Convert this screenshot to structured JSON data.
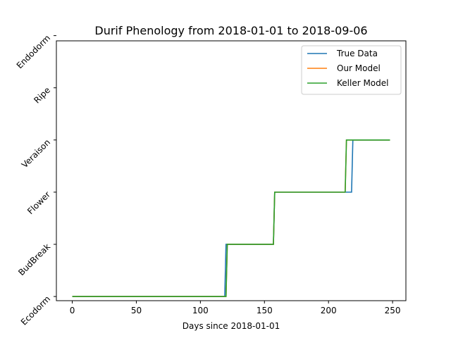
{
  "chart_data": {
    "type": "line",
    "title": "Durif Phenology from 2018-01-01 to 2018-09-06",
    "xlabel": "Days since 2018-01-01",
    "ylabel": "",
    "xlim": [
      -12.4,
      260.4
    ],
    "ylim": [
      -0.08,
      4.9
    ],
    "xticks": [
      0,
      50,
      100,
      150,
      200,
      250
    ],
    "yticks": [
      {
        "value": 0,
        "label": "Ecodorm"
      },
      {
        "value": 1,
        "label": "BudBreak"
      },
      {
        "value": 2,
        "label": "Flower"
      },
      {
        "value": 3,
        "label": "Veraison"
      },
      {
        "value": 4,
        "label": "Ripe"
      },
      {
        "value": 5,
        "label": "Endodorm"
      }
    ],
    "grid": false,
    "legend_position": "top-right",
    "series": [
      {
        "name": "True Data",
        "color": "#1f77b4",
        "points": [
          [
            0,
            0
          ],
          [
            119,
            0
          ],
          [
            120,
            1
          ],
          [
            157,
            1
          ],
          [
            158,
            2
          ],
          [
            218,
            2
          ],
          [
            219,
            3
          ],
          [
            248,
            3
          ]
        ]
      },
      {
        "name": "Our Model",
        "color": "#ff7f0e",
        "points": [
          [
            0,
            0
          ],
          [
            120,
            0
          ],
          [
            121,
            1
          ],
          [
            157,
            1
          ],
          [
            158,
            2
          ],
          [
            213,
            2
          ],
          [
            214,
            3
          ],
          [
            248,
            3
          ]
        ]
      },
      {
        "name": "Keller Model",
        "color": "#2ca02c",
        "points": [
          [
            0,
            0
          ],
          [
            120,
            0
          ],
          [
            121,
            1
          ],
          [
            157,
            1
          ],
          [
            158,
            2
          ],
          [
            213,
            2
          ],
          [
            214,
            3
          ],
          [
            248,
            3
          ]
        ]
      }
    ]
  }
}
